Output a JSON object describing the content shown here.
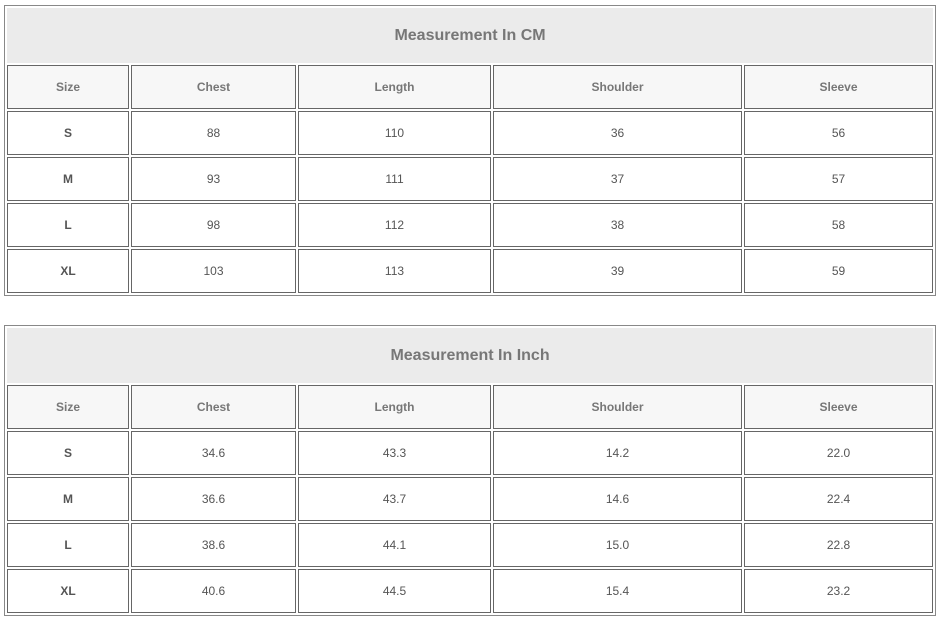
{
  "tables": [
    {
      "title": "Measurement In CM",
      "headers": [
        "Size",
        "Chest",
        "Length",
        "Shoulder",
        "Sleeve"
      ],
      "rows": [
        [
          "S",
          "88",
          "110",
          "36",
          "56"
        ],
        [
          "M",
          "93",
          "111",
          "37",
          "57"
        ],
        [
          "L",
          "98",
          "112",
          "38",
          "58"
        ],
        [
          "XL",
          "103",
          "113",
          "39",
          "59"
        ]
      ]
    },
    {
      "title": "Measurement In Inch",
      "headers": [
        "Size",
        "Chest",
        "Length",
        "Shoulder",
        "Sleeve"
      ],
      "rows": [
        [
          "S",
          "34.6",
          "43.3",
          "14.2",
          "22.0"
        ],
        [
          "M",
          "36.6",
          "43.7",
          "14.6",
          "22.4"
        ],
        [
          "L",
          "38.6",
          "44.1",
          "15.0",
          "22.8"
        ],
        [
          "XL",
          "40.6",
          "44.5",
          "15.4",
          "23.2"
        ]
      ]
    }
  ]
}
